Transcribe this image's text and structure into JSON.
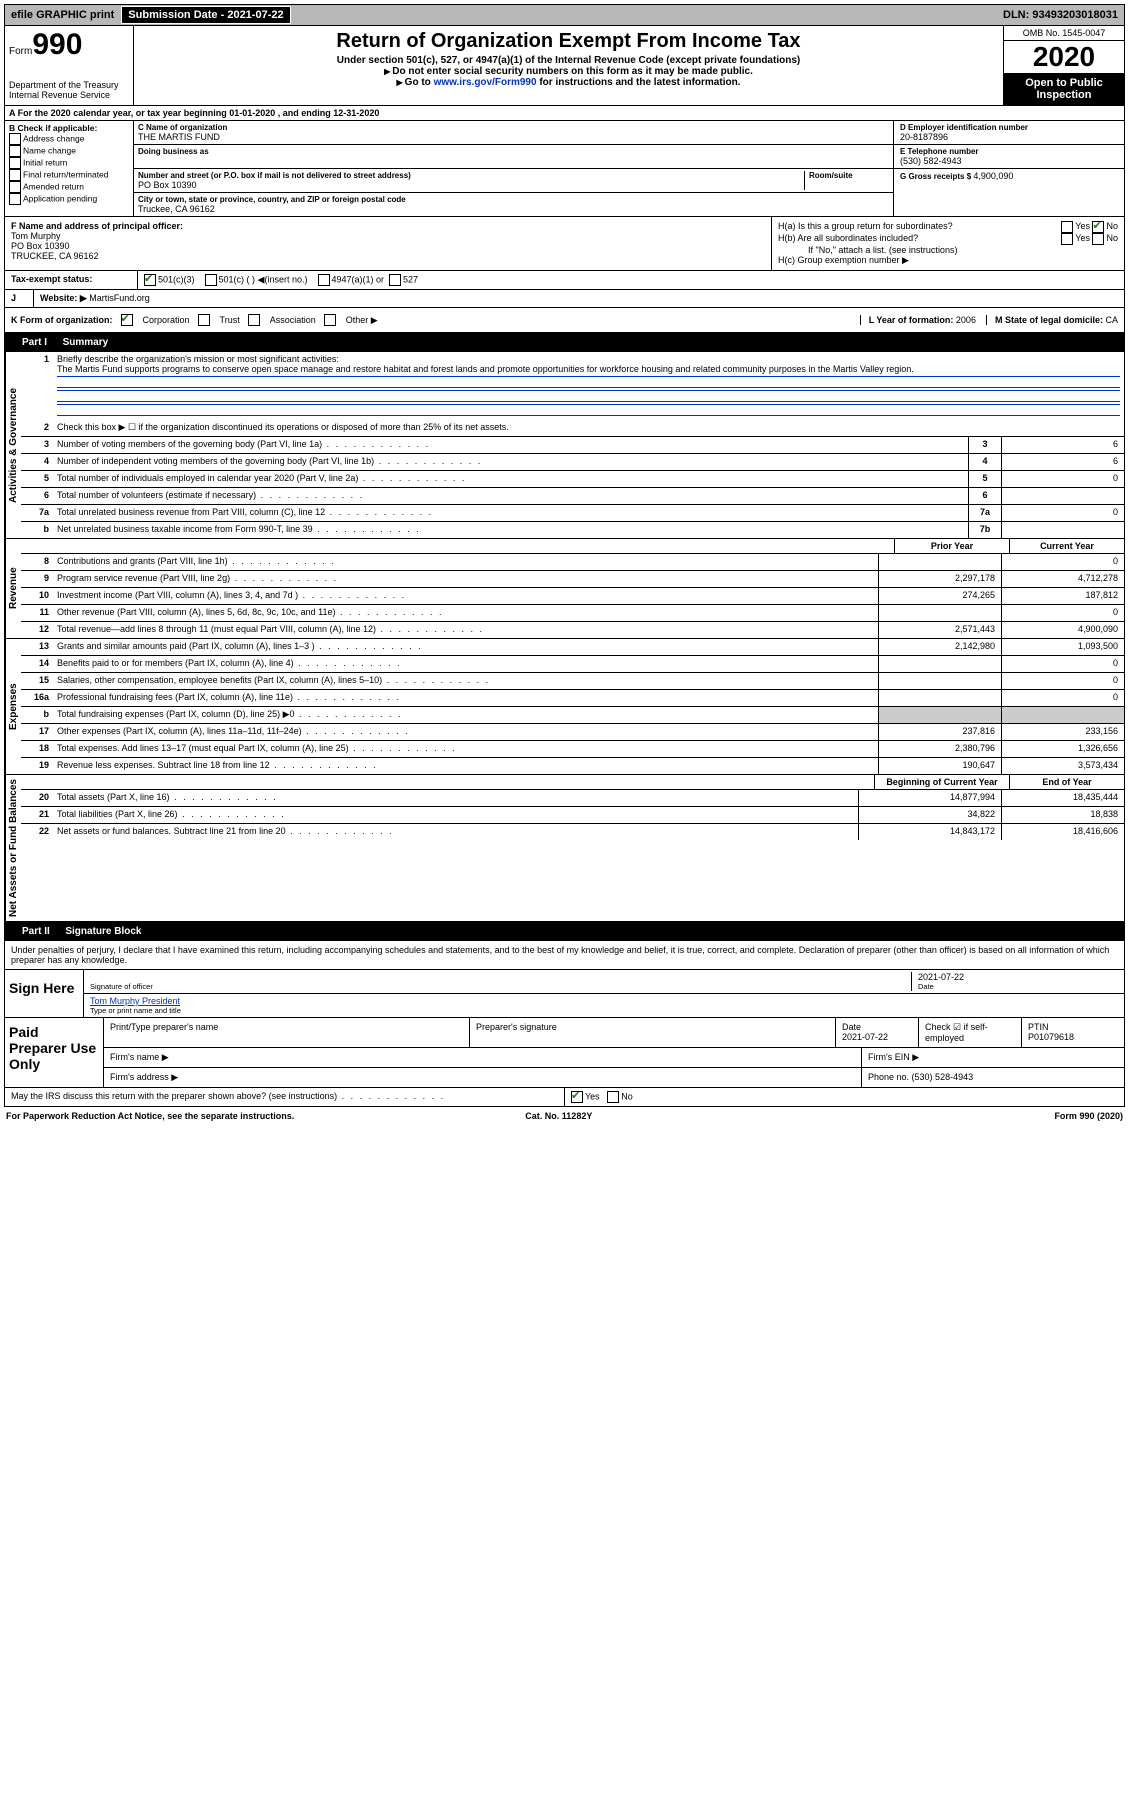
{
  "topbar": {
    "efile": "efile GRAPHIC print",
    "sub_label": "Submission Date - ",
    "sub_date": "2021-07-22",
    "dln_label": "DLN: ",
    "dln": "93493203018031"
  },
  "header": {
    "form_word": "Form",
    "form_num": "990",
    "dept": "Department of the Treasury\nInternal Revenue Service",
    "title": "Return of Organization Exempt From Income Tax",
    "sub": "Under section 501(c), 527, or 4947(a)(1) of the Internal Revenue Code (except private foundations)",
    "instr1": "Do not enter social security numbers on this form as it may be made public.",
    "instr2_pre": "Go to ",
    "instr2_link": "www.irs.gov/Form990",
    "instr2_post": " for instructions and the latest information.",
    "omb": "OMB No. 1545-0047",
    "year": "2020",
    "open": "Open to Public Inspection"
  },
  "rowA": "For the 2020 calendar year, or tax year beginning 01-01-2020   , and ending 12-31-2020",
  "boxB": {
    "hdr": "B Check if applicable:",
    "items": [
      "Address change",
      "Name change",
      "Initial return",
      "Final return/terminated",
      "Amended return",
      "Application pending"
    ]
  },
  "boxC": {
    "name_lbl": "C Name of organization",
    "name": "THE MARTIS FUND",
    "dba_lbl": "Doing business as",
    "addr_lbl": "Number and street (or P.O. box if mail is not delivered to street address)",
    "room_lbl": "Room/suite",
    "addr": "PO Box 10390",
    "city_lbl": "City or town, state or province, country, and ZIP or foreign postal code",
    "city": "Truckee, CA  96162"
  },
  "boxD": {
    "lbl": "D Employer identification number",
    "val": "20-8187896"
  },
  "boxE": {
    "lbl": "E Telephone number",
    "val": "(530) 582-4943"
  },
  "boxG": {
    "lbl": "G Gross receipts $ ",
    "val": "4,900,090"
  },
  "boxF": {
    "lbl": "F  Name and address of principal officer:",
    "name": "Tom Murphy",
    "addr1": "PO Box 10390",
    "addr2": "TRUCKEE, CA  96162"
  },
  "boxH": {
    "a": "H(a)  Is this a group return for subordinates?",
    "b": "H(b)  Are all subordinates included?",
    "b_note": "If \"No,\" attach a list. (see instructions)",
    "c": "H(c)  Group exemption number ▶",
    "yes": "Yes",
    "no": "No"
  },
  "rowI": {
    "lbl": "Tax-exempt status:",
    "o1": "501(c)(3)",
    "o2": "501(c) (  ) ◀(insert no.)",
    "o3": "4947(a)(1) or",
    "o4": "527"
  },
  "rowJ": {
    "lbl": "J",
    "txt": "Website: ▶",
    "val": "MartisFund.org"
  },
  "rowK": {
    "lbl": "K Form of organization:",
    "o1": "Corporation",
    "o2": "Trust",
    "o3": "Association",
    "o4": "Other ▶"
  },
  "rowL": {
    "lbl": "L Year of formation: ",
    "val": "2006"
  },
  "rowM": {
    "lbl": "M State of legal domicile: ",
    "val": "CA"
  },
  "part1": {
    "num": "Part I",
    "title": "Summary"
  },
  "vlabels": {
    "gov": "Activities & Governance",
    "rev": "Revenue",
    "exp": "Expenses",
    "net": "Net Assets or Fund Balances"
  },
  "l1": {
    "lbl": "Briefly describe the organization's mission or most significant activities:",
    "txt": "The Martis Fund supports programs to conserve open space manage and restore habitat and forest lands and promote opportunities for workforce housing and related community purposes in the Martis Valley region."
  },
  "l2": "Check this box ▶ ☐ if the organization discontinued its operations or disposed of more than 25% of its net assets.",
  "lines_gov": [
    {
      "n": "3",
      "t": "Number of voting members of the governing body (Part VI, line 1a)",
      "b": "3",
      "v": "6"
    },
    {
      "n": "4",
      "t": "Number of independent voting members of the governing body (Part VI, line 1b)",
      "b": "4",
      "v": "6"
    },
    {
      "n": "5",
      "t": "Total number of individuals employed in calendar year 2020 (Part V, line 2a)",
      "b": "5",
      "v": "0"
    },
    {
      "n": "6",
      "t": "Total number of volunteers (estimate if necessary)",
      "b": "6",
      "v": ""
    },
    {
      "n": "7a",
      "t": "Total unrelated business revenue from Part VIII, column (C), line 12",
      "b": "7a",
      "v": "0"
    },
    {
      "n": "b",
      "t": "Net unrelated business taxable income from Form 990-T, line 39",
      "b": "7b",
      "v": ""
    }
  ],
  "yrhdr": {
    "prior": "Prior Year",
    "curr": "Current Year"
  },
  "lines_rev": [
    {
      "n": "8",
      "t": "Contributions and grants (Part VIII, line 1h)",
      "p": "",
      "c": "0"
    },
    {
      "n": "9",
      "t": "Program service revenue (Part VIII, line 2g)",
      "p": "2,297,178",
      "c": "4,712,278"
    },
    {
      "n": "10",
      "t": "Investment income (Part VIII, column (A), lines 3, 4, and 7d )",
      "p": "274,265",
      "c": "187,812"
    },
    {
      "n": "11",
      "t": "Other revenue (Part VIII, column (A), lines 5, 6d, 8c, 9c, 10c, and 11e)",
      "p": "",
      "c": "0"
    },
    {
      "n": "12",
      "t": "Total revenue—add lines 8 through 11 (must equal Part VIII, column (A), line 12)",
      "p": "2,571,443",
      "c": "4,900,090"
    }
  ],
  "lines_exp": [
    {
      "n": "13",
      "t": "Grants and similar amounts paid (Part IX, column (A), lines 1–3 )",
      "p": "2,142,980",
      "c": "1,093,500"
    },
    {
      "n": "14",
      "t": "Benefits paid to or for members (Part IX, column (A), line 4)",
      "p": "",
      "c": "0"
    },
    {
      "n": "15",
      "t": "Salaries, other compensation, employee benefits (Part IX, column (A), lines 5–10)",
      "p": "",
      "c": "0"
    },
    {
      "n": "16a",
      "t": "Professional fundraising fees (Part IX, column (A), line 11e)",
      "p": "",
      "c": "0"
    },
    {
      "n": "b",
      "t": "Total fundraising expenses (Part IX, column (D), line 25) ▶0",
      "p": "gray",
      "c": "gray"
    },
    {
      "n": "17",
      "t": "Other expenses (Part IX, column (A), lines 11a–11d, 11f–24e)",
      "p": "237,816",
      "c": "233,156"
    },
    {
      "n": "18",
      "t": "Total expenses. Add lines 13–17 (must equal Part IX, column (A), line 25)",
      "p": "2,380,796",
      "c": "1,326,656"
    },
    {
      "n": "19",
      "t": "Revenue less expenses. Subtract line 18 from line 12",
      "p": "190,647",
      "c": "3,573,434"
    }
  ],
  "nethdr": {
    "beg": "Beginning of Current Year",
    "end": "End of Year"
  },
  "lines_net": [
    {
      "n": "20",
      "t": "Total assets (Part X, line 16)",
      "p": "14,877,994",
      "c": "18,435,444"
    },
    {
      "n": "21",
      "t": "Total liabilities (Part X, line 26)",
      "p": "34,822",
      "c": "18,838"
    },
    {
      "n": "22",
      "t": "Net assets or fund balances. Subtract line 21 from line 20",
      "p": "14,843,172",
      "c": "18,416,606"
    }
  ],
  "part2": {
    "num": "Part II",
    "title": "Signature Block"
  },
  "penalty": "Under penalties of perjury, I declare that I have examined this return, including accompanying schedules and statements, and to the best of my knowledge and belief, it is true, correct, and complete. Declaration of preparer (other than officer) is based on all information of which preparer has any knowledge.",
  "sign": {
    "lbl": "Sign Here",
    "sig_lbl": "Signature of officer",
    "date": "2021-07-22",
    "date_lbl": "Date",
    "name": "Tom Murphy  President",
    "name_lbl": "Type or print name and title"
  },
  "prep": {
    "lbl": "Paid Preparer Use Only",
    "h1": "Print/Type preparer's name",
    "h2": "Preparer's signature",
    "h3": "Date",
    "h3v": "2021-07-22",
    "h4": "Check ☑ if self-employed",
    "h5l": "PTIN",
    "h5v": "P01079618",
    "firm_name": "Firm's name    ▶",
    "firm_ein": "Firm's EIN ▶",
    "firm_addr": "Firm's address ▶",
    "phone_l": "Phone no. ",
    "phone_v": "(530) 528-4943"
  },
  "discuss": "May the IRS discuss this return with the preparer shown above? (see instructions)",
  "foot": {
    "l": "For Paperwork Reduction Act Notice, see the separate instructions.",
    "m": "Cat. No. 11282Y",
    "r": "Form 990 (2020)"
  }
}
